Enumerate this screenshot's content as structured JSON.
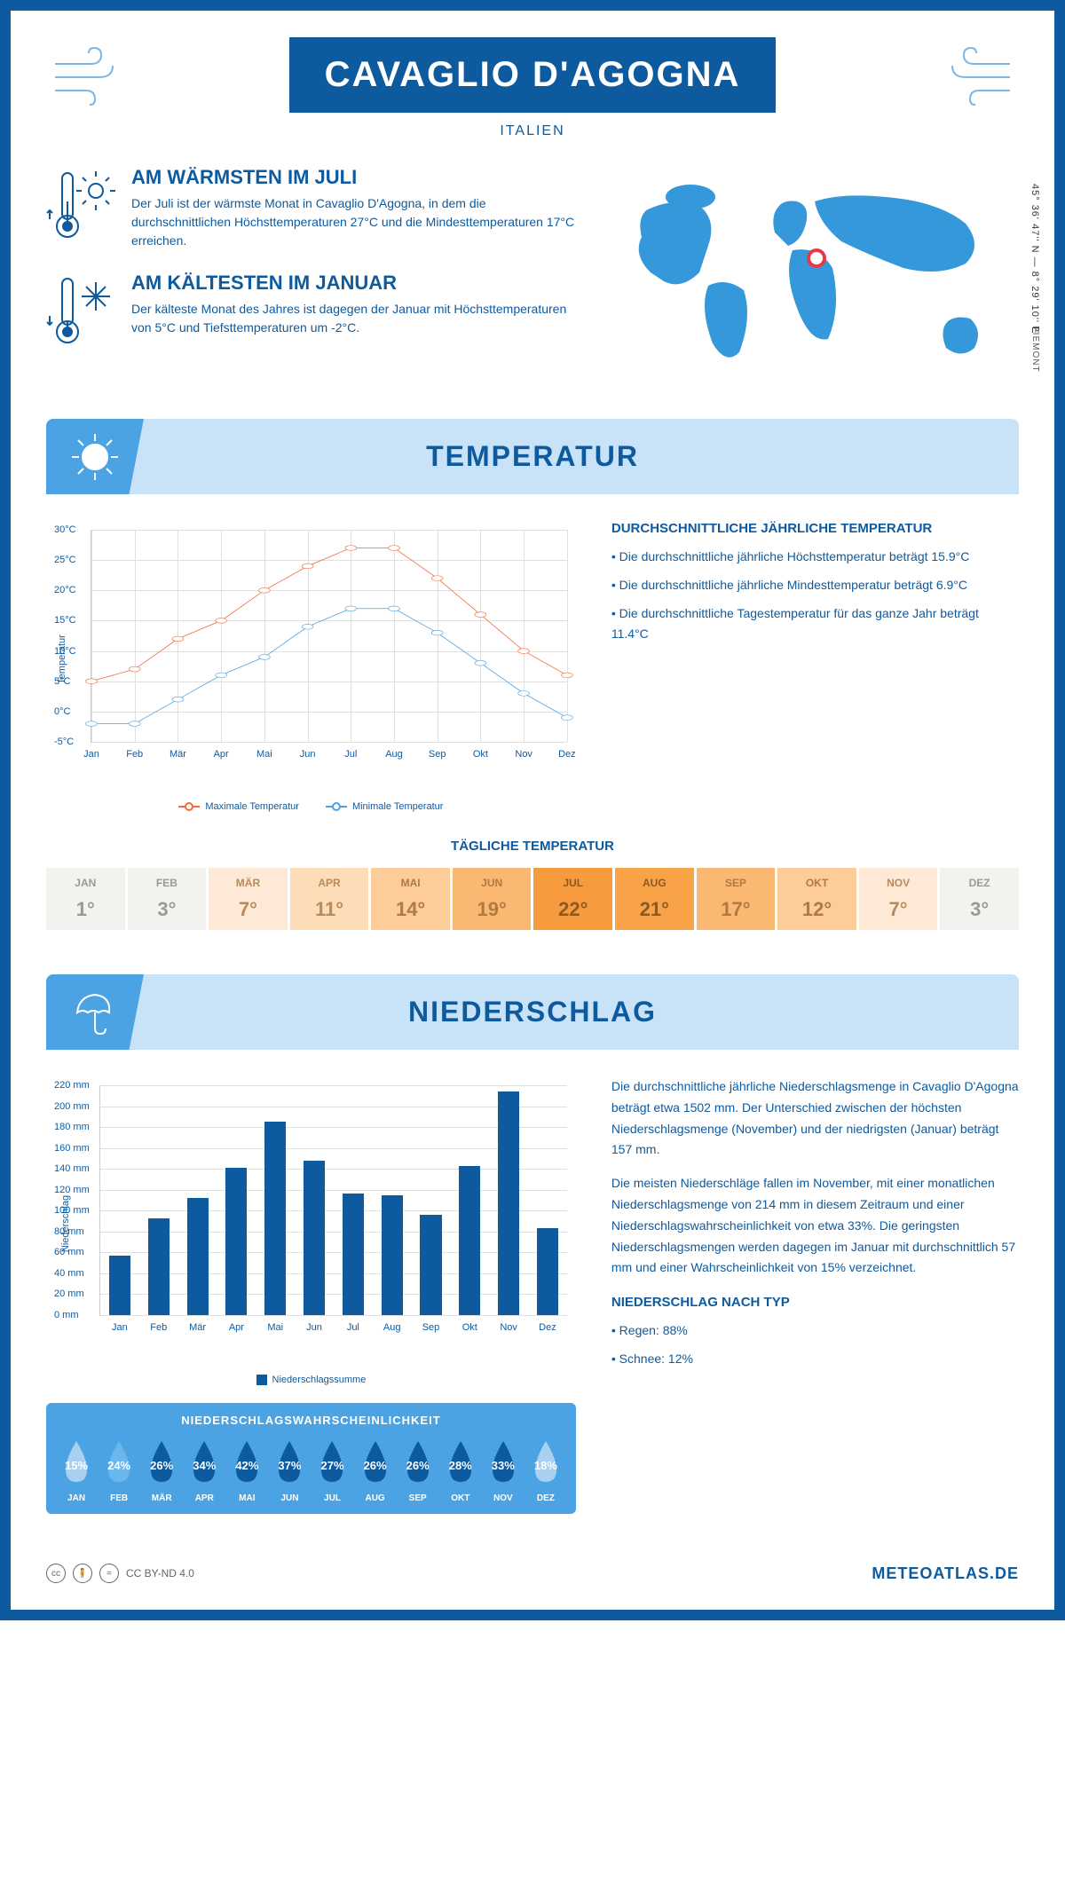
{
  "header": {
    "title": "CAVAGLIO D'AGOGNA",
    "country": "ITALIEN",
    "region": "PIEMONT",
    "coords": "45° 36' 47'' N — 8° 29' 10'' E",
    "marker_pos": {
      "left_pct": 48,
      "top_pct": 38
    }
  },
  "warmest": {
    "title": "AM WÄRMSTEN IM JULI",
    "text": "Der Juli ist der wärmste Monat in Cavaglio D'Agogna, in dem die durchschnittlichen Höchsttemperaturen 27°C und die Mindesttemperaturen 17°C erreichen."
  },
  "coldest": {
    "title": "AM KÄLTESTEN IM JANUAR",
    "text": "Der kälteste Monat des Jahres ist dagegen der Januar mit Höchsttemperaturen von 5°C und Tiefsttemperaturen um -2°C."
  },
  "temp_section": {
    "heading": "TEMPERATUR",
    "desc_title": "DURCHSCHNITTLICHE JÄHRLICHE TEMPERATUR",
    "bullets": [
      "• Die durchschnittliche jährliche Höchsttemperatur beträgt 15.9°C",
      "• Die durchschnittliche jährliche Mindesttemperatur beträgt 6.9°C",
      "• Die durchschnittliche Tagestemperatur für das ganze Jahr beträgt 11.4°C"
    ],
    "chart": {
      "type": "line",
      "y_label": "Temperatur",
      "months": [
        "Jan",
        "Feb",
        "Mär",
        "Apr",
        "Mai",
        "Jun",
        "Jul",
        "Aug",
        "Sep",
        "Okt",
        "Nov",
        "Dez"
      ],
      "max_series": {
        "label": "Maximale Temperatur",
        "color": "#f26b3a",
        "values": [
          5,
          7,
          12,
          15,
          20,
          24,
          27,
          27,
          22,
          16,
          10,
          6
        ]
      },
      "min_series": {
        "label": "Minimale Temperatur",
        "color": "#4ba3e3",
        "values": [
          -2,
          -2,
          2,
          6,
          9,
          14,
          17,
          17,
          13,
          8,
          3,
          -1
        ]
      },
      "ylim": [
        -5,
        30
      ],
      "ytick_step": 5,
      "grid_color": "#e0e0e0"
    },
    "daily_title": "TÄGLICHE TEMPERATUR",
    "daily": {
      "months": [
        "JAN",
        "FEB",
        "MÄR",
        "APR",
        "MAI",
        "JUN",
        "JUL",
        "AUG",
        "SEP",
        "OKT",
        "NOV",
        "DEZ"
      ],
      "values": [
        "1°",
        "3°",
        "7°",
        "11°",
        "14°",
        "19°",
        "22°",
        "21°",
        "17°",
        "12°",
        "7°",
        "3°"
      ],
      "bg_colors": [
        "#f4f2ef",
        "#f4f2ef",
        "#fde9d6",
        "#fddcb8",
        "#fdcd99",
        "#fab872",
        "#f89b3f",
        "#f8a348",
        "#fab872",
        "#fdcd99",
        "#fde9d6",
        "#f4f2ef"
      ],
      "text_colors": [
        "#999",
        "#999",
        "#b88a5c",
        "#b88a5c",
        "#b07a40",
        "#b07a40",
        "#8a5a20",
        "#8a5a20",
        "#b07a40",
        "#b07a40",
        "#b88a5c",
        "#999"
      ]
    }
  },
  "precip_section": {
    "heading": "NIEDERSCHLAG",
    "chart": {
      "type": "bar",
      "y_label": "Niederschlag",
      "months": [
        "Jan",
        "Feb",
        "Mär",
        "Apr",
        "Mai",
        "Jun",
        "Jul",
        "Aug",
        "Sep",
        "Okt",
        "Nov",
        "Dez"
      ],
      "values": [
        57,
        93,
        112,
        141,
        185,
        148,
        116,
        115,
        96,
        143,
        214,
        83
      ],
      "bar_color": "#0d5a9e",
      "ylim": [
        0,
        220
      ],
      "ytick_step": 20,
      "legend": "Niederschlagssumme"
    },
    "desc_p1": "Die durchschnittliche jährliche Niederschlagsmenge in Cavaglio D'Agogna beträgt etwa 1502 mm. Der Unterschied zwischen der höchsten Niederschlagsmenge (November) und der niedrigsten (Januar) beträgt 157 mm.",
    "desc_p2": "Die meisten Niederschläge fallen im November, mit einer monatlichen Niederschlagsmenge von 214 mm in diesem Zeitraum und einer Niederschlagswahrscheinlichkeit von etwa 33%. Die geringsten Niederschlagsmengen werden dagegen im Januar mit durchschnittlich 57 mm und einer Wahrscheinlichkeit von 15% verzeichnet.",
    "by_type_title": "NIEDERSCHLAG NACH TYP",
    "by_type": [
      "• Regen: 88%",
      "• Schnee: 12%"
    ],
    "prob": {
      "title": "NIEDERSCHLAGSWAHRSCHEINLICHKEIT",
      "months": [
        "JAN",
        "FEB",
        "MÄR",
        "APR",
        "MAI",
        "JUN",
        "JUL",
        "AUG",
        "SEP",
        "OKT",
        "NOV",
        "DEZ"
      ],
      "values": [
        "15%",
        "24%",
        "26%",
        "34%",
        "42%",
        "37%",
        "27%",
        "26%",
        "26%",
        "28%",
        "33%",
        "18%"
      ],
      "fill_colors": [
        "#a8d0f0",
        "#6bb6eb",
        "#0d5a9e",
        "#0d5a9e",
        "#0d5a9e",
        "#0d5a9e",
        "#0d5a9e",
        "#0d5a9e",
        "#0d5a9e",
        "#0d5a9e",
        "#0d5a9e",
        "#a8d0f0"
      ]
    }
  },
  "footer": {
    "license": "CC BY-ND 4.0",
    "brand": "METEOATLAS.DE"
  }
}
